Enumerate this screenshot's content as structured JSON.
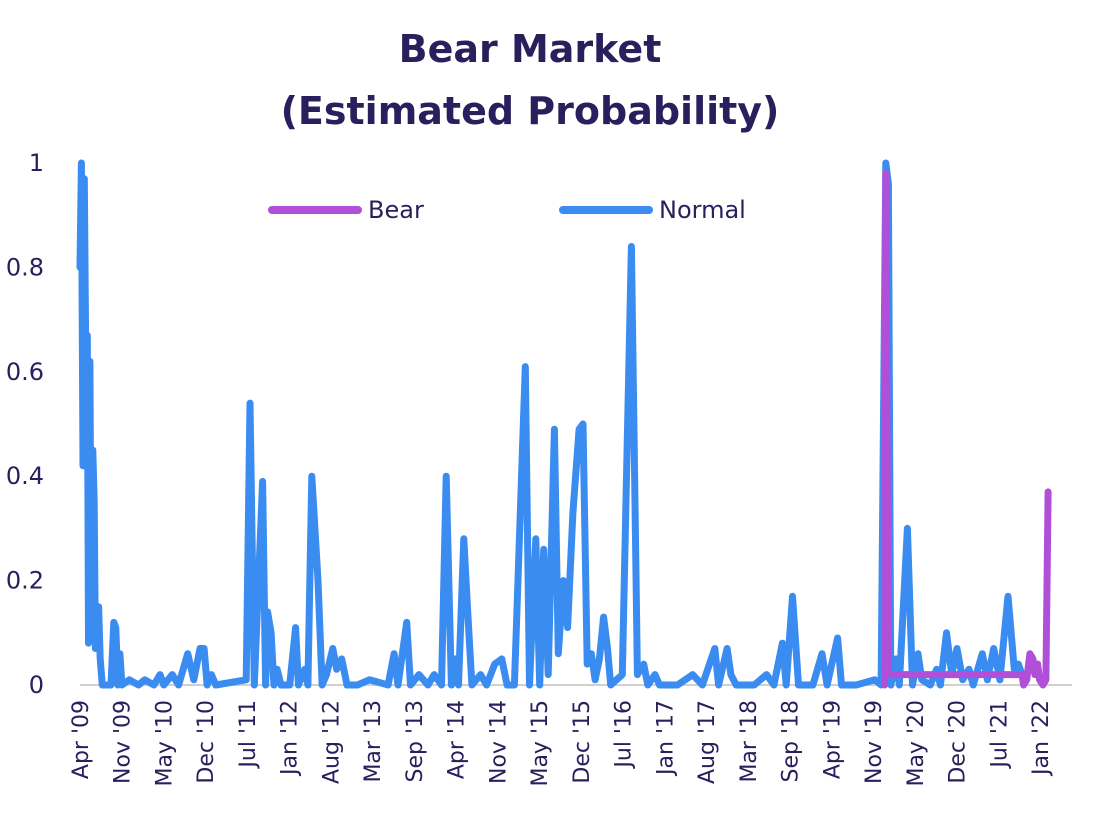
{
  "chart_data": {
    "type": "line",
    "title": "Bear Market",
    "subtitle": "(Estimated Probability)",
    "ylim": [
      0,
      1
    ],
    "yticks": [
      "1",
      "0.8",
      "0.6",
      "0.4",
      "0.2",
      "0"
    ],
    "xticks": [
      "Apr '09",
      "Nov '09",
      "May '10",
      "Dec '10",
      "Jul '11",
      "Jan '12",
      "Aug '12",
      "Mar '13",
      "Sep '13",
      "Apr '14",
      "Nov '14",
      "May '15",
      "Dec '15",
      "Jul '16",
      "Jan '17",
      "Aug '17",
      "Mar '18",
      "Sep '18",
      "Apr '19",
      "Nov '19",
      "May '20",
      "Dec '20",
      "Jul '21",
      "Jan '22"
    ],
    "x_range": [
      "2009-04",
      "2022-09"
    ],
    "legend_position": "top",
    "series": [
      {
        "name": "Bear",
        "color": "#b050d8",
        "points": [
          [
            "2020-02-18",
            0.0
          ],
          [
            "2020-02-24",
            0.98
          ],
          [
            "2020-03-01",
            0.5
          ],
          [
            "2020-03-08",
            0.02
          ],
          [
            "2021-12-28",
            0.02
          ],
          [
            "2022-01-05",
            0.0
          ],
          [
            "2022-01-20",
            0.01
          ],
          [
            "2022-02-05",
            0.06
          ],
          [
            "2022-02-20",
            0.05
          ],
          [
            "2022-03-01",
            0.02
          ],
          [
            "2022-03-15",
            0.04
          ],
          [
            "2022-03-25",
            0.01
          ],
          [
            "2022-04-10",
            0.0
          ],
          [
            "2022-04-25",
            0.01
          ],
          [
            "2022-05-06",
            0.37
          ]
        ]
      },
      {
        "name": "Normal",
        "color": "#3b8cf0",
        "points": [
          [
            "2009-04-01",
            0.8
          ],
          [
            "2009-04-08",
            1.0
          ],
          [
            "2009-04-16",
            0.42
          ],
          [
            "2009-04-22",
            0.97
          ],
          [
            "2009-05-01",
            0.55
          ],
          [
            "2009-05-07",
            0.67
          ],
          [
            "2009-05-13",
            0.08
          ],
          [
            "2009-05-20",
            0.62
          ],
          [
            "2009-05-27",
            0.1
          ],
          [
            "2009-06-03",
            0.45
          ],
          [
            "2009-06-10",
            0.35
          ],
          [
            "2009-06-16",
            0.07
          ],
          [
            "2009-06-24",
            0.12
          ],
          [
            "2009-07-02",
            0.15
          ],
          [
            "2009-07-10",
            0.05
          ],
          [
            "2009-07-20",
            0.0
          ],
          [
            "2009-09-01",
            0.0
          ],
          [
            "2009-09-15",
            0.12
          ],
          [
            "2009-09-25",
            0.11
          ],
          [
            "2009-10-05",
            0.0
          ],
          [
            "2009-10-15",
            0.06
          ],
          [
            "2009-10-25",
            0.0
          ],
          [
            "2009-12-01",
            0.01
          ],
          [
            "2010-01-15",
            0.0
          ],
          [
            "2010-02-15",
            0.01
          ],
          [
            "2010-04-01",
            0.0
          ],
          [
            "2010-05-01",
            0.02
          ],
          [
            "2010-05-20",
            0.0
          ],
          [
            "2010-07-01",
            0.02
          ],
          [
            "2010-08-01",
            0.0
          ],
          [
            "2010-09-15",
            0.06
          ],
          [
            "2010-10-15",
            0.01
          ],
          [
            "2010-11-15",
            0.07
          ],
          [
            "2010-12-05",
            0.07
          ],
          [
            "2010-12-20",
            0.0
          ],
          [
            "2011-01-10",
            0.02
          ],
          [
            "2011-02-01",
            0.0
          ],
          [
            "2011-07-01",
            0.01
          ],
          [
            "2011-07-20",
            0.54
          ],
          [
            "2011-08-10",
            0.0
          ],
          [
            "2011-09-20",
            0.39
          ],
          [
            "2011-10-05",
            0.0
          ],
          [
            "2011-10-15",
            0.14
          ],
          [
            "2011-11-01",
            0.1
          ],
          [
            "2011-11-15",
            0.0
          ],
          [
            "2011-12-01",
            0.03
          ],
          [
            "2011-12-20",
            0.0
          ],
          [
            "2012-02-01",
            0.0
          ],
          [
            "2012-03-01",
            0.11
          ],
          [
            "2012-03-15",
            0.0
          ],
          [
            "2012-04-15",
            0.03
          ],
          [
            "2012-05-01",
            0.0
          ],
          [
            "2012-05-20",
            0.4
          ],
          [
            "2012-06-20",
            0.2
          ],
          [
            "2012-07-10",
            0.0
          ],
          [
            "2012-08-01",
            0.02
          ],
          [
            "2012-09-01",
            0.07
          ],
          [
            "2012-09-20",
            0.03
          ],
          [
            "2012-10-15",
            0.05
          ],
          [
            "2012-11-10",
            0.0
          ],
          [
            "2013-01-01",
            0.0
          ],
          [
            "2013-03-01",
            0.01
          ],
          [
            "2013-06-01",
            0.0
          ],
          [
            "2013-07-01",
            0.06
          ],
          [
            "2013-07-20",
            0.0
          ],
          [
            "2013-09-01",
            0.12
          ],
          [
            "2013-09-20",
            0.0
          ],
          [
            "2013-11-01",
            0.02
          ],
          [
            "2013-12-15",
            0.0
          ],
          [
            "2014-01-15",
            0.02
          ],
          [
            "2014-02-20",
            0.0
          ],
          [
            "2014-03-15",
            0.4
          ],
          [
            "2014-04-10",
            0.0
          ],
          [
            "2014-05-01",
            0.05
          ],
          [
            "2014-05-15",
            0.0
          ],
          [
            "2014-06-10",
            0.28
          ],
          [
            "2014-07-01",
            0.13
          ],
          [
            "2014-07-20",
            0.0
          ],
          [
            "2014-09-01",
            0.02
          ],
          [
            "2014-10-01",
            0.0
          ],
          [
            "2014-11-10",
            0.04
          ],
          [
            "2014-12-15",
            0.05
          ],
          [
            "2015-01-10",
            0.0
          ],
          [
            "2015-02-15",
            0.0
          ],
          [
            "2015-04-10",
            0.61
          ],
          [
            "2015-05-01",
            0.0
          ],
          [
            "2015-06-01",
            0.28
          ],
          [
            "2015-06-20",
            0.0
          ],
          [
            "2015-07-10",
            0.26
          ],
          [
            "2015-08-01",
            0.02
          ],
          [
            "2015-09-01",
            0.49
          ],
          [
            "2015-09-20",
            0.06
          ],
          [
            "2015-10-15",
            0.2
          ],
          [
            "2015-11-05",
            0.11
          ],
          [
            "2015-12-01",
            0.33
          ],
          [
            "2016-01-01",
            0.49
          ],
          [
            "2016-01-20",
            0.5
          ],
          [
            "2016-02-10",
            0.04
          ],
          [
            "2016-03-01",
            0.06
          ],
          [
            "2016-03-20",
            0.01
          ],
          [
            "2016-04-10",
            0.05
          ],
          [
            "2016-05-01",
            0.13
          ],
          [
            "2016-05-20",
            0.07
          ],
          [
            "2016-06-05",
            0.0
          ],
          [
            "2016-08-01",
            0.02
          ],
          [
            "2016-09-15",
            0.84
          ],
          [
            "2016-10-15",
            0.02
          ],
          [
            "2016-11-15",
            0.04
          ],
          [
            "2016-12-05",
            0.0
          ],
          [
            "2017-01-10",
            0.02
          ],
          [
            "2017-02-01",
            0.0
          ],
          [
            "2017-05-01",
            0.0
          ],
          [
            "2017-07-15",
            0.02
          ],
          [
            "2017-09-01",
            0.0
          ],
          [
            "2017-11-01",
            0.07
          ],
          [
            "2017-11-20",
            0.0
          ],
          [
            "2018-01-01",
            0.07
          ],
          [
            "2018-01-20",
            0.02
          ],
          [
            "2018-02-15",
            0.0
          ],
          [
            "2018-05-15",
            0.0
          ],
          [
            "2018-07-15",
            0.02
          ],
          [
            "2018-08-20",
            0.0
          ],
          [
            "2018-10-01",
            0.08
          ],
          [
            "2018-10-20",
            0.0
          ],
          [
            "2018-11-20",
            0.17
          ],
          [
            "2018-12-20",
            0.0
          ],
          [
            "2019-03-01",
            0.0
          ],
          [
            "2019-04-15",
            0.06
          ],
          [
            "2019-05-10",
            0.0
          ],
          [
            "2019-07-01",
            0.09
          ],
          [
            "2019-07-20",
            0.0
          ],
          [
            "2019-10-01",
            0.0
          ],
          [
            "2020-01-01",
            0.01
          ],
          [
            "2020-02-01",
            0.0
          ],
          [
            "2020-02-24",
            1.0
          ],
          [
            "2020-03-08",
            0.96
          ],
          [
            "2020-03-20",
            0.0
          ],
          [
            "2020-04-15",
            0.05
          ],
          [
            "2020-05-01",
            0.0
          ],
          [
            "2020-06-10",
            0.3
          ],
          [
            "2020-07-05",
            0.0
          ],
          [
            "2020-08-01",
            0.06
          ],
          [
            "2020-08-20",
            0.01
          ],
          [
            "2020-10-01",
            0.0
          ],
          [
            "2020-11-01",
            0.03
          ],
          [
            "2020-11-20",
            0.0
          ],
          [
            "2020-12-20",
            0.1
          ],
          [
            "2021-01-15",
            0.02
          ],
          [
            "2021-02-10",
            0.07
          ],
          [
            "2021-03-10",
            0.01
          ],
          [
            "2021-04-10",
            0.03
          ],
          [
            "2021-05-01",
            0.0
          ],
          [
            "2021-06-15",
            0.06
          ],
          [
            "2021-07-10",
            0.01
          ],
          [
            "2021-08-10",
            0.07
          ],
          [
            "2021-09-10",
            0.01
          ],
          [
            "2021-10-20",
            0.17
          ],
          [
            "2021-11-20",
            0.03
          ],
          [
            "2021-12-10",
            0.04
          ],
          [
            "2021-12-28",
            0.02
          ]
        ]
      }
    ]
  }
}
